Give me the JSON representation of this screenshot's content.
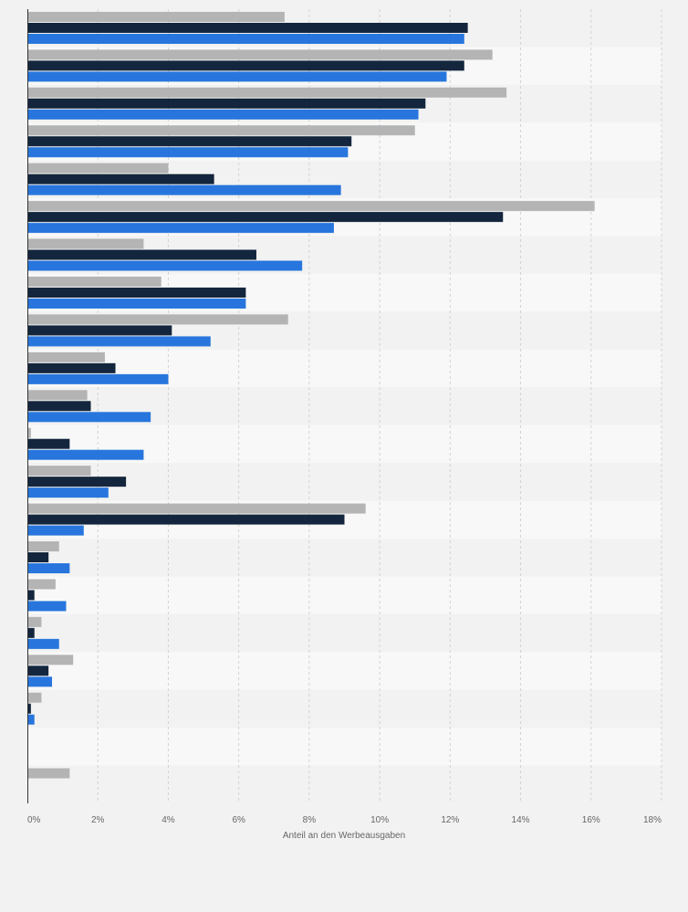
{
  "chart_data": {
    "type": "bar",
    "orientation": "horizontal",
    "title": "",
    "xlabel": "Anteil an den Werbeausgaben",
    "ylabel": "",
    "xlim": [
      0,
      18
    ],
    "x_ticks": [
      "0%",
      "2%",
      "4%",
      "6%",
      "8%",
      "10%",
      "12%",
      "14%",
      "16%",
      "18%"
    ],
    "grid": true,
    "legend": "none",
    "categories": [
      "",
      "",
      "",
      "",
      "",
      "",
      "",
      "",
      "",
      "",
      "",
      "",
      "",
      "",
      "",
      "",
      "",
      "",
      "",
      "",
      ""
    ],
    "series": [
      {
        "color": "#b4b4b4",
        "values": [
          7.3,
          13.2,
          13.6,
          11.0,
          4.0,
          16.1,
          3.3,
          3.8,
          7.4,
          2.2,
          1.7,
          0.1,
          1.8,
          9.6,
          0.9,
          0.8,
          0.4,
          1.3,
          0.4,
          0,
          1.2
        ]
      },
      {
        "color": "#14263d",
        "values": [
          12.5,
          12.4,
          11.3,
          9.2,
          5.3,
          13.5,
          6.5,
          6.2,
          4.1,
          2.5,
          1.8,
          1.2,
          2.8,
          9.0,
          0.6,
          0.2,
          0.2,
          0.6,
          0.1,
          0,
          0
        ]
      },
      {
        "color": "#2876dd",
        "values": [
          12.4,
          11.9,
          11.1,
          9.1,
          8.9,
          8.7,
          7.8,
          6.2,
          5.2,
          4.0,
          3.5,
          3.3,
          2.3,
          1.6,
          1.2,
          1.1,
          0.9,
          0.7,
          0.2,
          0,
          0
        ]
      }
    ]
  }
}
